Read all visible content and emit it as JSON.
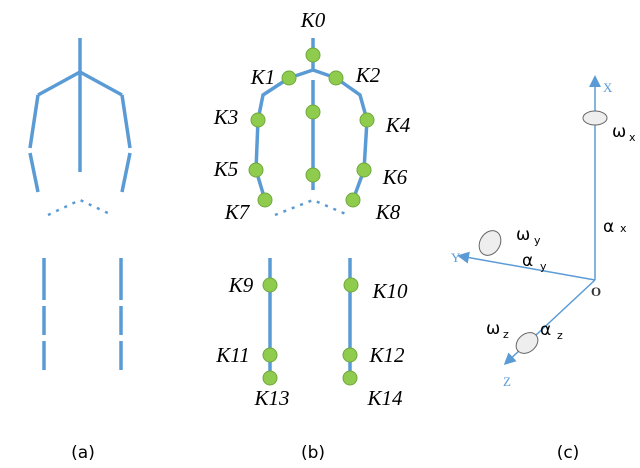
{
  "captions": [
    "(a)",
    "(b)",
    "(c)"
  ],
  "keypoints": [
    "K0",
    "K1",
    "K2",
    "K3",
    "K4",
    "K5",
    "K6",
    "K7",
    "K8",
    "K9",
    "K10",
    "K11",
    "K12",
    "K13",
    "K14"
  ],
  "axes": {
    "x": "X",
    "y": "Y",
    "z": "Z",
    "origin": "O"
  },
  "rotations": [
    {
      "omega": "ω",
      "omega_sub": "x",
      "alpha": "α",
      "alpha_sub": "x"
    },
    {
      "omega": "ω",
      "omega_sub": "y",
      "alpha": "α",
      "alpha_sub": "y"
    },
    {
      "omega": "ω",
      "omega_sub": "z",
      "alpha": "α",
      "alpha_sub": "z"
    }
  ]
}
